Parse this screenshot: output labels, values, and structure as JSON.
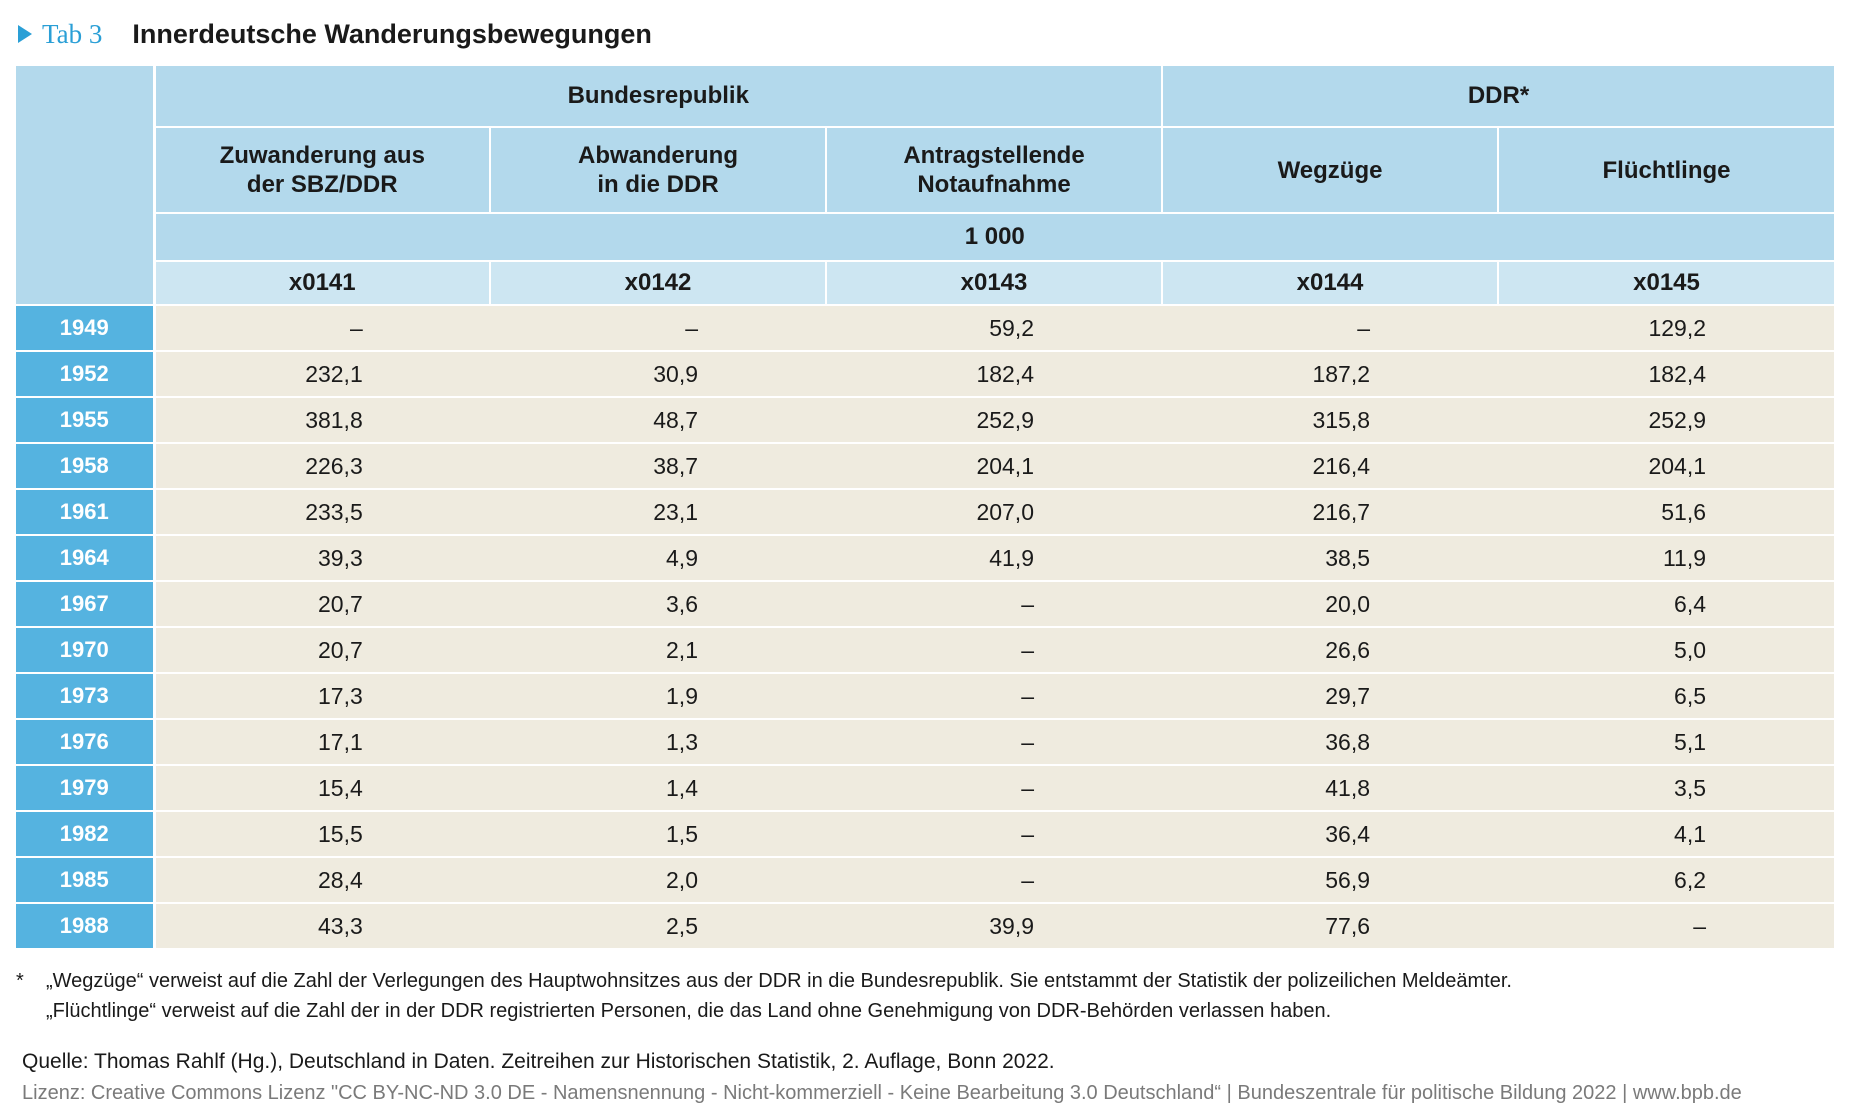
{
  "header": {
    "tab_label": "Tab 3",
    "title": "Innerdeutsche Wanderungsbewegungen"
  },
  "table": {
    "group_headers": [
      "Bundesrepublik",
      "DDR*"
    ],
    "columns": [
      {
        "line1": "Zuwanderung aus",
        "line2": "der SBZ/DDR",
        "code": "x0141"
      },
      {
        "line1": "Abwanderung",
        "line2": "in die DDR",
        "code": "x0142"
      },
      {
        "line1": "Antragstellende",
        "line2": "Notaufnahme",
        "code": "x0143"
      },
      {
        "line1": "Wegzüge",
        "line2": "",
        "code": "x0144"
      },
      {
        "line1": "Flüchtlinge",
        "line2": "",
        "code": "x0145"
      }
    ],
    "unit": "1 000",
    "rows": [
      {
        "year": "1949",
        "values": [
          "–",
          "–",
          "59,2",
          "–",
          "129,2"
        ]
      },
      {
        "year": "1952",
        "values": [
          "232,1",
          "30,9",
          "182,4",
          "187,2",
          "182,4"
        ]
      },
      {
        "year": "1955",
        "values": [
          "381,8",
          "48,7",
          "252,9",
          "315,8",
          "252,9"
        ]
      },
      {
        "year": "1958",
        "values": [
          "226,3",
          "38,7",
          "204,1",
          "216,4",
          "204,1"
        ]
      },
      {
        "year": "1961",
        "values": [
          "233,5",
          "23,1",
          "207,0",
          "216,7",
          "51,6"
        ]
      },
      {
        "year": "1964",
        "values": [
          "39,3",
          "4,9",
          "41,9",
          "38,5",
          "11,9"
        ]
      },
      {
        "year": "1967",
        "values": [
          "20,7",
          "3,6",
          "–",
          "20,0",
          "6,4"
        ]
      },
      {
        "year": "1970",
        "values": [
          "20,7",
          "2,1",
          "–",
          "26,6",
          "5,0"
        ]
      },
      {
        "year": "1973",
        "values": [
          "17,3",
          "1,9",
          "–",
          "29,7",
          "6,5"
        ]
      },
      {
        "year": "1976",
        "values": [
          "17,1",
          "1,3",
          "–",
          "36,8",
          "5,1"
        ]
      },
      {
        "year": "1979",
        "values": [
          "15,4",
          "1,4",
          "–",
          "41,8",
          "3,5"
        ]
      },
      {
        "year": "1982",
        "values": [
          "15,5",
          "1,5",
          "–",
          "36,4",
          "4,1"
        ]
      },
      {
        "year": "1985",
        "values": [
          "28,4",
          "2,0",
          "–",
          "56,9",
          "6,2"
        ]
      },
      {
        "year": "1988",
        "values": [
          "43,3",
          "2,5",
          "39,9",
          "77,6",
          "–"
        ]
      }
    ]
  },
  "footnote": {
    "marker": "*",
    "line1": "„Wegzüge“ verweist auf die Zahl der Verlegungen des Hauptwohnsitzes aus der DDR in die Bundesrepublik. Sie entstammt der Statistik der polizeilichen Meldeämter.",
    "line2": "„Flüchtlinge“ verweist auf die Zahl der in der DDR registrierten Personen, die das Land ohne Genehmigung von DDR-Behörden verlassen haben."
  },
  "source": "Quelle: Thomas Rahlf (Hg.), Deutschland in Daten. Zeitreihen zur Historischen Statistik, 2. Auflage, Bonn 2022.",
  "license": "Lizenz: Creative Commons Lizenz \"CC BY-NC-ND 3.0 DE - Namensnennung - Nicht-kommerziell - Keine Bearbeitung 3.0 Deutschland“ | Bundeszentrale für politische Bildung 2022 | www.bpb.de",
  "colors": {
    "accent": "#2a9fd6",
    "year_column": "#55b3e0",
    "header": "#b3d9ec",
    "code_row": "#cde6f2",
    "body": "#efebdf"
  }
}
